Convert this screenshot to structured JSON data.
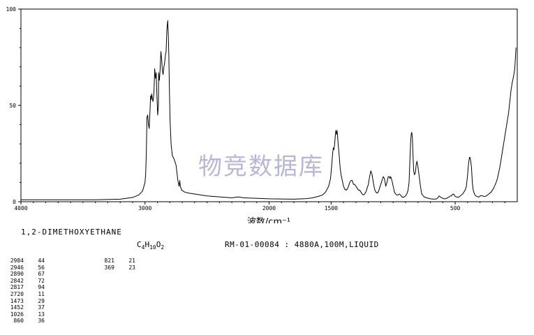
{
  "chart_data": {
    "type": "line",
    "xlabel": "波数/cm⁻¹",
    "xlim": [
      4000,
      0
    ],
    "ylim": [
      0,
      100
    ],
    "xticks": [
      4000,
      3000,
      2000,
      1500,
      500
    ],
    "yticks": [
      0,
      50,
      100
    ],
    "grid": false,
    "watermark": "物竞数据库",
    "series": [
      {
        "x": [
          4000,
          3400,
          3200,
          3100,
          3050,
          3020,
          3000,
          2995,
          2990,
          2984,
          2978,
          2972,
          2966,
          2960,
          2955,
          2950,
          2946,
          2942,
          2936,
          2930,
          2926,
          2922,
          2916,
          2910,
          2904,
          2898,
          2892,
          2890,
          2884,
          2878,
          2872,
          2866,
          2860,
          2854,
          2848,
          2842,
          2836,
          2830,
          2824,
          2820,
          2817,
          2812,
          2808,
          2804,
          2798,
          2790,
          2780,
          2765,
          2750,
          2735,
          2725,
          2720,
          2715,
          2705,
          2680,
          2650,
          2600,
          2500,
          2300,
          2250,
          2200,
          2000,
          1800,
          1700,
          1650,
          1600,
          1570,
          1545,
          1520,
          1505,
          1495,
          1488,
          1482,
          1478,
          1473,
          1468,
          1462,
          1456,
          1452,
          1447,
          1442,
          1435,
          1428,
          1420,
          1410,
          1400,
          1390,
          1380,
          1370,
          1360,
          1350,
          1340,
          1330,
          1320,
          1310,
          1300,
          1290,
          1280,
          1270,
          1260,
          1250,
          1240,
          1230,
          1220,
          1210,
          1200,
          1190,
          1180,
          1170,
          1160,
          1150,
          1140,
          1130,
          1120,
          1110,
          1100,
          1090,
          1080,
          1070,
          1060,
          1050,
          1040,
          1030,
          1026,
          1020,
          1010,
          1000,
          990,
          980,
          970,
          960,
          950,
          940,
          930,
          920,
          910,
          900,
          890,
          880,
          872,
          866,
          860,
          855,
          850,
          845,
          840,
          835,
          828,
          821,
          815,
          808,
          800,
          790,
          780,
          770,
          750,
          730,
          700,
          670,
          650,
          640,
          630,
          620,
          610,
          600,
          590,
          580,
          570,
          560,
          550,
          540,
          530,
          520,
          510,
          500,
          490,
          480,
          470,
          460,
          450,
          440,
          430,
          420,
          410,
          400,
          395,
          390,
          385,
          380,
          375,
          369,
          362,
          355,
          345,
          335,
          325,
          315,
          305,
          300,
          290,
          280,
          270,
          260,
          250,
          240,
          230,
          220,
          210,
          200,
          190,
          180,
          170,
          160,
          150,
          140,
          130,
          120,
          110,
          100,
          90,
          80,
          70,
          60,
          50,
          40,
          30,
          20,
          10
        ],
        "values": [
          1,
          1,
          1.3,
          2.2,
          3.5,
          5.5,
          10,
          14,
          24,
          44,
          45,
          40,
          38,
          47,
          55,
          53,
          56,
          54,
          52,
          55,
          60,
          69,
          64,
          67,
          55,
          45,
          50,
          67,
          63,
          69,
          78,
          74,
          68,
          66,
          70,
          72,
          76,
          78,
          89,
          92,
          94,
          86,
          76,
          60,
          42,
          30,
          24,
          22,
          19,
          11,
          8,
          11,
          8,
          6,
          5,
          4.5,
          4,
          3,
          2,
          2.5,
          2,
          1.5,
          1.3,
          1.6,
          2,
          2.8,
          3.5,
          5,
          8,
          12,
          19,
          25,
          28,
          27,
          29,
          33,
          37,
          35,
          37,
          33,
          29,
          24,
          18,
          14,
          11,
          8,
          6.5,
          6,
          6.5,
          8,
          10,
          11,
          11,
          9,
          9,
          8,
          7,
          6,
          6,
          5,
          4,
          3.5,
          4,
          5,
          7,
          9,
          13,
          16,
          14,
          10,
          6.5,
          5,
          4.5,
          5,
          7,
          9,
          11,
          13,
          12,
          8,
          10,
          13,
          13,
          12,
          13,
          11,
          8,
          5,
          4,
          3.5,
          3.5,
          4,
          3.5,
          2.5,
          2.3,
          2.5,
          3,
          4,
          6,
          10,
          20,
          30,
          35,
          36,
          33,
          24,
          16,
          14,
          15,
          19,
          21,
          18,
          13,
          8,
          4,
          2.5,
          2,
          1.5,
          1.3,
          1.5,
          2,
          3,
          2.5,
          2,
          1.8,
          1.5,
          1.5,
          1.8,
          2,
          2.5,
          3,
          3,
          4,
          3.8,
          2.7,
          2.5,
          2.3,
          2.4,
          3,
          3.5,
          4,
          5,
          6,
          8,
          14,
          18,
          21,
          23,
          23,
          21,
          18,
          10,
          6,
          4,
          3,
          2.8,
          2.5,
          2.5,
          3,
          3.2,
          3,
          2.8,
          2.7,
          3,
          3.5,
          4,
          4.5,
          5,
          6,
          7,
          8.5,
          10,
          12,
          15,
          18,
          22,
          26,
          30,
          34,
          38,
          42,
          46,
          52,
          58,
          62,
          65,
          69,
          80
        ]
      }
    ]
  },
  "info": {
    "compound_name": "1,2-DIMETHOXYETHANE",
    "formula_parts": [
      "C",
      "4",
      "H",
      "10",
      "O",
      "2"
    ],
    "catalog": "RM-01-00084 : 4880A,100M,LIQUID"
  },
  "peaks_col1": [
    {
      "wn": "2984",
      "t": "44"
    },
    {
      "wn": "2946",
      "t": "56"
    },
    {
      "wn": "2890",
      "t": "67"
    },
    {
      "wn": "2842",
      "t": "72"
    },
    {
      "wn": "2817",
      "t": "94"
    },
    {
      "wn": "2720",
      "t": "11"
    },
    {
      "wn": "1473",
      "t": "29"
    },
    {
      "wn": "1452",
      "t": "37"
    },
    {
      "wn": "1026",
      "t": "13"
    },
    {
      "wn": "860",
      "t": "36"
    }
  ],
  "peaks_col2": [
    {
      "wn": "821",
      "t": "21"
    },
    {
      "wn": "369",
      "t": "23"
    }
  ]
}
